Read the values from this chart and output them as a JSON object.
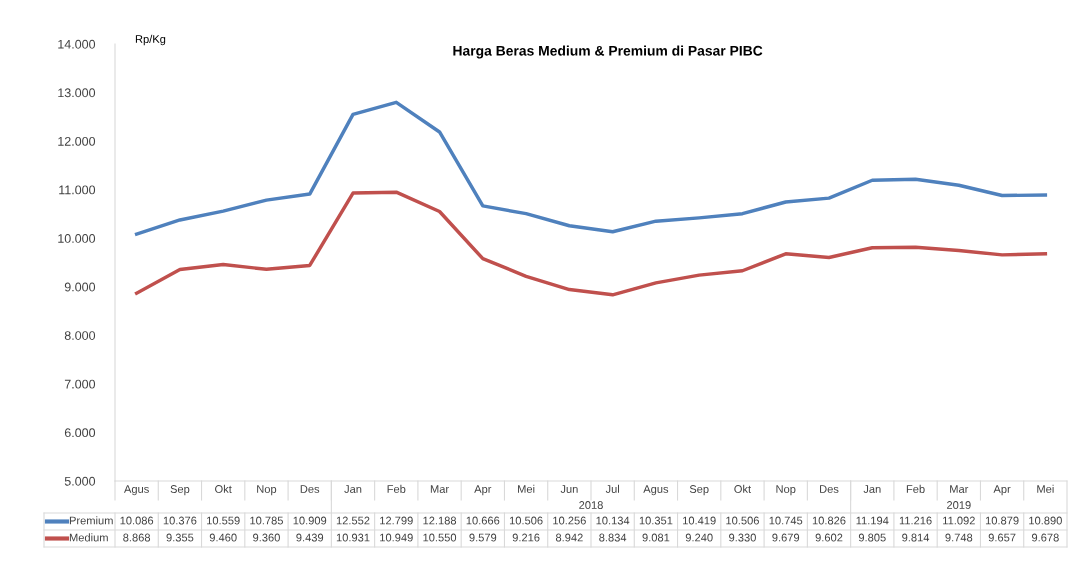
{
  "chart_data": {
    "type": "line",
    "title": "Harga Beras Medium & Premium di Pasar PIBC",
    "ylabel": "Rp/Kg",
    "categories": [
      "Agus",
      "Sep",
      "Okt",
      "Nop",
      "Des",
      "Jan",
      "Feb",
      "Mar",
      "Apr",
      "Mei",
      "Jun",
      "Jul",
      "Agus",
      "Sep",
      "Okt",
      "Nop",
      "Des",
      "Jan",
      "Feb",
      "Mar",
      "Apr",
      "Mei"
    ],
    "series": [
      {
        "name": "Premium",
        "color": "#4f81bd",
        "values": [
          10086,
          10376,
          10559,
          10785,
          10909,
          12552,
          12799,
          12188,
          10666,
          10506,
          10256,
          10134,
          10351,
          10419,
          10506,
          10745,
          10826,
          11194,
          11216,
          11092,
          10879,
          10890
        ],
        "value_labels": [
          "10.086",
          "10.376",
          "10.559",
          "10.785",
          "10.909",
          "12.552",
          "12.799",
          "12.188",
          "10.666",
          "10.506",
          "10.256",
          "10.134",
          "10.351",
          "10.419",
          "10.506",
          "10.745",
          "10.826",
          "11.194",
          "11.216",
          "11.092",
          "10.879",
          "10.890"
        ]
      },
      {
        "name": "Medium",
        "color": "#c0504d",
        "values": [
          8868,
          9355,
          9460,
          9360,
          9439,
          10931,
          10949,
          10550,
          9579,
          9216,
          8942,
          8834,
          9081,
          9240,
          9330,
          9679,
          9602,
          9805,
          9814,
          9748,
          9657,
          9678
        ],
        "value_labels": [
          "8.868",
          "9.355",
          "9.460",
          "9.360",
          "9.439",
          "10.931",
          "10.949",
          "10.550",
          "9.579",
          "9.216",
          "8.942",
          "8.834",
          "9.081",
          "9.240",
          "9.330",
          "9.679",
          "9.602",
          "9.805",
          "9.814",
          "9.748",
          "9.657",
          "9.678"
        ]
      }
    ],
    "ylim": [
      5000,
      14000
    ],
    "yticks": [
      {
        "value": 5000,
        "label": "5.000"
      },
      {
        "value": 6000,
        "label": "6.000"
      },
      {
        "value": 7000,
        "label": "7.000"
      },
      {
        "value": 8000,
        "label": "8.000"
      },
      {
        "value": 9000,
        "label": "9.000"
      },
      {
        "value": 10000,
        "label": "10.000"
      },
      {
        "value": 11000,
        "label": "11.000"
      },
      {
        "value": 12000,
        "label": "12.000"
      },
      {
        "value": 13000,
        "label": "13.000"
      },
      {
        "value": 14000,
        "label": "14.000"
      }
    ],
    "annotations": [
      "2018",
      "2019"
    ],
    "grid": false,
    "legend": "bottom left",
    "marker": "none",
    "line_style": "solid"
  }
}
